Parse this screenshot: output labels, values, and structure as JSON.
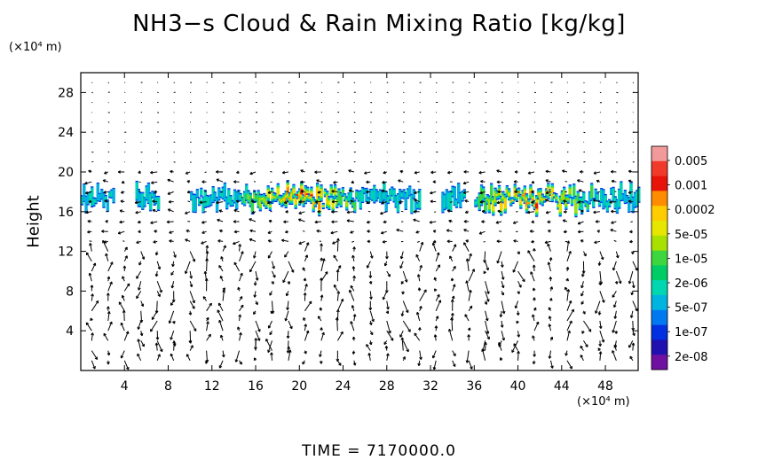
{
  "chart_data": {
    "type": "heatmap",
    "title": "NH3−s Cloud & Rain Mixing Ratio [kg/kg]",
    "xunit": "(×10⁴ m)",
    "yunit": "(×10⁴ m)",
    "ylabel": "Height",
    "xlim": [
      0,
      51
    ],
    "ylim": [
      0,
      30
    ],
    "xticks": [
      4,
      8,
      12,
      16,
      20,
      24,
      28,
      32,
      36,
      40,
      44,
      48
    ],
    "yticks": [
      4,
      8,
      12,
      16,
      20,
      24,
      28
    ],
    "colorbar": {
      "labels": [
        "0.005",
        "0.001",
        "0.0002",
        "5e-05",
        "1e-05",
        "2e-06",
        "5e-07",
        "1e-07",
        "2e-08"
      ],
      "colors": [
        "#f29a9a",
        "#f03a2a",
        "#e8140a",
        "#ff8c00",
        "#ffcc00",
        "#e6e600",
        "#a8e000",
        "#3ed63e",
        "#00cc66",
        "#00d6b0",
        "#00b4e0",
        "#0078f0",
        "#0030e0",
        "#2010b0",
        "#7010a0"
      ]
    },
    "layer_cloud": {
      "y_range": [
        16,
        19
      ],
      "x_extent_segments": [
        [
          0,
          3
        ],
        [
          5,
          7
        ],
        [
          10,
          31
        ],
        [
          33,
          35
        ],
        [
          36,
          51
        ]
      ],
      "max_value_location": [
        {
          "x": 20,
          "y": 16.5
        },
        {
          "x": 41,
          "y": 17
        }
      ]
    },
    "wind_vectors": "present (quiver arrows across domain)"
  },
  "footer": {
    "time_label": "TIME  =  7170000.0"
  }
}
